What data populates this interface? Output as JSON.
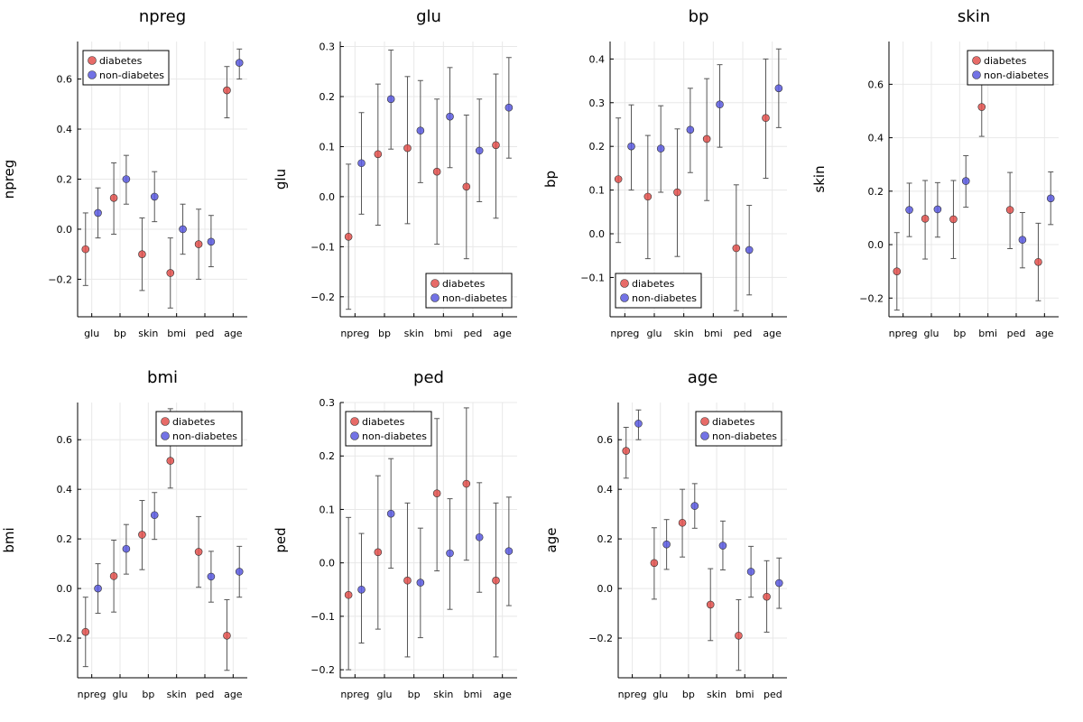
{
  "colors": {
    "diabetes": "#e3514d",
    "non_diabetes": "#5a5ae0",
    "errorbar": "#555555"
  },
  "legend_labels": [
    "diabetes",
    "non-diabetes"
  ],
  "chart_data": [
    {
      "type": "scatter",
      "title": "npreg",
      "ylabel": "npreg",
      "legend": "top-left",
      "categories": [
        "glu",
        "bp",
        "skin",
        "bmi",
        "ped",
        "age"
      ],
      "ylim": [
        -0.35,
        0.75
      ],
      "yticks": [
        -0.2,
        0.0,
        0.2,
        0.4,
        0.6
      ],
      "ytick_labels": [
        "−0.2",
        "0.0",
        "0.2",
        "0.4",
        "0.6"
      ],
      "series": [
        {
          "name": "diabetes",
          "values": [
            -0.08,
            0.125,
            -0.1,
            -0.175,
            -0.06,
            0.555
          ],
          "lower": [
            -0.225,
            -0.02,
            -0.245,
            -0.315,
            -0.2,
            0.445
          ],
          "upper": [
            0.065,
            0.265,
            0.045,
            -0.035,
            0.08,
            0.65
          ]
        },
        {
          "name": "non-diabetes",
          "values": [
            0.065,
            0.2,
            0.13,
            0.0,
            -0.05,
            0.665
          ],
          "lower": [
            -0.035,
            0.1,
            0.03,
            -0.1,
            -0.15,
            0.6
          ],
          "upper": [
            0.165,
            0.295,
            0.23,
            0.1,
            0.055,
            0.72
          ]
        }
      ]
    },
    {
      "type": "scatter",
      "title": "glu",
      "ylabel": "glu",
      "legend": "bottom-right",
      "categories": [
        "npreg",
        "bp",
        "skin",
        "bmi",
        "ped",
        "age"
      ],
      "ylim": [
        -0.24,
        0.31
      ],
      "yticks": [
        -0.2,
        -0.1,
        0.0,
        0.1,
        0.2,
        0.3
      ],
      "ytick_labels": [
        "−0.2",
        "−0.1",
        "0.0",
        "0.1",
        "0.2",
        "0.3"
      ],
      "series": [
        {
          "name": "diabetes",
          "values": [
            -0.08,
            0.085,
            0.097,
            0.05,
            0.02,
            0.103
          ],
          "lower": [
            -0.225,
            -0.057,
            -0.054,
            -0.095,
            -0.124,
            -0.043
          ],
          "upper": [
            0.065,
            0.225,
            0.24,
            0.195,
            0.163,
            0.245
          ]
        },
        {
          "name": "non-diabetes",
          "values": [
            0.067,
            0.195,
            0.132,
            0.16,
            0.092,
            0.178
          ],
          "lower": [
            -0.035,
            0.095,
            0.028,
            0.058,
            -0.01,
            0.077
          ],
          "upper": [
            0.168,
            0.293,
            0.232,
            0.258,
            0.195,
            0.278
          ]
        }
      ]
    },
    {
      "type": "scatter",
      "title": "bp",
      "ylabel": "bp",
      "legend": "bottom-left",
      "categories": [
        "npreg",
        "glu",
        "skin",
        "bmi",
        "ped",
        "age"
      ],
      "ylim": [
        -0.19,
        0.44
      ],
      "yticks": [
        -0.1,
        0.0,
        0.1,
        0.2,
        0.3,
        0.4
      ],
      "ytick_labels": [
        "−0.1",
        "0.0",
        "0.1",
        "0.2",
        "0.3",
        "0.4"
      ],
      "series": [
        {
          "name": "diabetes",
          "values": [
            0.125,
            0.085,
            0.095,
            0.217,
            -0.033,
            0.265
          ],
          "lower": [
            -0.02,
            -0.057,
            -0.052,
            0.076,
            -0.176,
            0.127
          ],
          "upper": [
            0.265,
            0.225,
            0.24,
            0.355,
            0.112,
            0.4
          ]
        },
        {
          "name": "non-diabetes",
          "values": [
            0.2,
            0.195,
            0.238,
            0.296,
            -0.037,
            0.333
          ],
          "lower": [
            0.1,
            0.095,
            0.14,
            0.198,
            -0.14,
            0.243
          ],
          "upper": [
            0.295,
            0.293,
            0.333,
            0.387,
            0.065,
            0.423
          ]
        }
      ]
    },
    {
      "type": "scatter",
      "title": "skin",
      "ylabel": "skin",
      "legend": "top-right",
      "categories": [
        "npreg",
        "glu",
        "bp",
        "bmi",
        "ped",
        "age"
      ],
      "ylim": [
        -0.27,
        0.76
      ],
      "yticks": [
        -0.2,
        0.0,
        0.2,
        0.4,
        0.6
      ],
      "ytick_labels": [
        "−0.2",
        "0.0",
        "0.2",
        "0.4",
        "0.6"
      ],
      "series": [
        {
          "name": "diabetes",
          "values": [
            -0.1,
            0.097,
            0.095,
            0.515,
            0.13,
            -0.065
          ],
          "lower": [
            -0.245,
            -0.054,
            -0.052,
            0.405,
            -0.015,
            -0.21
          ],
          "upper": [
            0.045,
            0.24,
            0.24,
            0.725,
            0.27,
            0.08
          ]
        },
        {
          "name": "non-diabetes",
          "values": [
            0.13,
            0.132,
            0.238,
            null,
            0.018,
            0.173
          ],
          "lower": [
            0.03,
            0.028,
            0.14,
            null,
            -0.087,
            0.075
          ],
          "upper": [
            0.23,
            0.232,
            0.333,
            null,
            0.12,
            0.272
          ]
        }
      ]
    },
    {
      "type": "scatter",
      "title": "bmi",
      "ylabel": "bmi",
      "legend": "top-right",
      "categories": [
        "npreg",
        "glu",
        "bp",
        "skin",
        "ped",
        "age"
      ],
      "ylim": [
        -0.36,
        0.75
      ],
      "yticks": [
        -0.2,
        0.0,
        0.2,
        0.4,
        0.6
      ],
      "ytick_labels": [
        "−0.2",
        "0.0",
        "0.2",
        "0.4",
        "0.6"
      ],
      "series": [
        {
          "name": "diabetes",
          "values": [
            -0.175,
            0.05,
            0.217,
            0.515,
            0.148,
            -0.19
          ],
          "lower": [
            -0.315,
            -0.095,
            0.076,
            0.405,
            0.005,
            -0.33
          ],
          "upper": [
            -0.035,
            0.195,
            0.355,
            0.725,
            0.29,
            -0.045
          ]
        },
        {
          "name": "non-diabetes",
          "values": [
            0.0,
            0.16,
            0.296,
            null,
            0.048,
            0.068
          ],
          "lower": [
            -0.1,
            0.058,
            0.198,
            null,
            -0.055,
            -0.035
          ],
          "upper": [
            0.1,
            0.258,
            0.387,
            null,
            0.15,
            0.17
          ]
        }
      ]
    },
    {
      "type": "scatter",
      "title": "ped",
      "ylabel": "ped",
      "legend": "top-left",
      "categories": [
        "npreg",
        "glu",
        "bp",
        "skin",
        "bmi",
        "age"
      ],
      "ylim": [
        -0.215,
        0.3
      ],
      "yticks": [
        -0.2,
        -0.1,
        0.0,
        0.1,
        0.2,
        0.3
      ],
      "ytick_labels": [
        "−0.2",
        "−0.1",
        "0.0",
        "0.1",
        "0.2",
        "0.3"
      ],
      "series": [
        {
          "name": "diabetes",
          "values": [
            -0.06,
            0.02,
            -0.033,
            0.13,
            0.148,
            -0.033
          ],
          "lower": [
            -0.2,
            -0.124,
            -0.176,
            -0.015,
            0.005,
            -0.176
          ],
          "upper": [
            0.085,
            0.163,
            0.112,
            0.27,
            0.29,
            0.112
          ]
        },
        {
          "name": "non-diabetes",
          "values": [
            -0.05,
            0.092,
            -0.037,
            0.018,
            0.048,
            0.022
          ],
          "lower": [
            -0.15,
            -0.01,
            -0.14,
            -0.087,
            -0.055,
            -0.08
          ],
          "upper": [
            0.055,
            0.195,
            0.065,
            0.12,
            0.15,
            0.123
          ]
        }
      ]
    },
    {
      "type": "scatter",
      "title": "age",
      "ylabel": "age",
      "legend": "top-right",
      "categories": [
        "npreg",
        "glu",
        "bp",
        "skin",
        "bmi",
        "ped"
      ],
      "ylim": [
        -0.36,
        0.75
      ],
      "yticks": [
        -0.2,
        0.0,
        0.2,
        0.4,
        0.6
      ],
      "ytick_labels": [
        "−0.2",
        "0.0",
        "0.2",
        "0.4",
        "0.6"
      ],
      "series": [
        {
          "name": "diabetes",
          "values": [
            0.555,
            0.103,
            0.265,
            -0.065,
            -0.19,
            -0.033
          ],
          "lower": [
            0.445,
            -0.043,
            0.127,
            -0.21,
            -0.33,
            -0.176
          ],
          "upper": [
            0.65,
            0.245,
            0.4,
            0.08,
            -0.045,
            0.112
          ]
        },
        {
          "name": "non-diabetes",
          "values": [
            0.665,
            0.178,
            0.333,
            0.173,
            0.068,
            0.022
          ],
          "lower": [
            0.6,
            0.077,
            0.243,
            0.075,
            -0.035,
            -0.08
          ],
          "upper": [
            0.72,
            0.278,
            0.423,
            0.272,
            0.17,
            0.123
          ]
        }
      ]
    }
  ]
}
